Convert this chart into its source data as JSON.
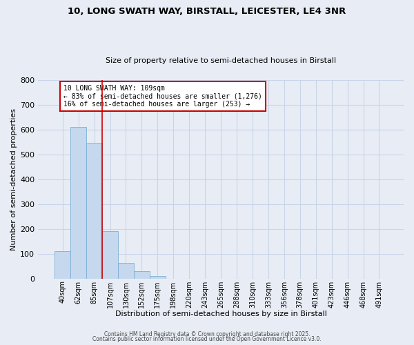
{
  "title_line1": "10, LONG SWATH WAY, BIRSTALL, LEICESTER, LE4 3NR",
  "title_line2": "Size of property relative to semi-detached houses in Birstall",
  "bar_labels": [
    "40sqm",
    "62sqm",
    "85sqm",
    "107sqm",
    "130sqm",
    "152sqm",
    "175sqm",
    "198sqm",
    "220sqm",
    "243sqm",
    "265sqm",
    "288sqm",
    "310sqm",
    "333sqm",
    "356sqm",
    "378sqm",
    "401sqm",
    "423sqm",
    "446sqm",
    "468sqm",
    "491sqm"
  ],
  "bar_values": [
    110,
    610,
    548,
    190,
    62,
    30,
    10,
    0,
    0,
    0,
    0,
    0,
    0,
    0,
    0,
    0,
    0,
    0,
    0,
    0,
    0
  ],
  "bar_color": "#c5d8ed",
  "bar_edge_color": "#7bafd4",
  "grid_color": "#c8d4e8",
  "background_color": "#e8edf5",
  "vline_color": "#cc0000",
  "xlabel": "Distribution of semi-detached houses by size in Birstall",
  "ylabel": "Number of semi-detached properties",
  "ylim": [
    0,
    800
  ],
  "yticks": [
    0,
    100,
    200,
    300,
    400,
    500,
    600,
    700,
    800
  ],
  "annotation_title": "10 LONG SWATH WAY: 109sqm",
  "annotation_line2": "← 83% of semi-detached houses are smaller (1,276)",
  "annotation_line3": "16% of semi-detached houses are larger (253) →",
  "annotation_box_color": "#ffffff",
  "annotation_box_edge_color": "#cc0000",
  "footer_line1": "Contains HM Land Registry data © Crown copyright and database right 2025.",
  "footer_line2": "Contains public sector information licensed under the Open Government Licence v3.0."
}
